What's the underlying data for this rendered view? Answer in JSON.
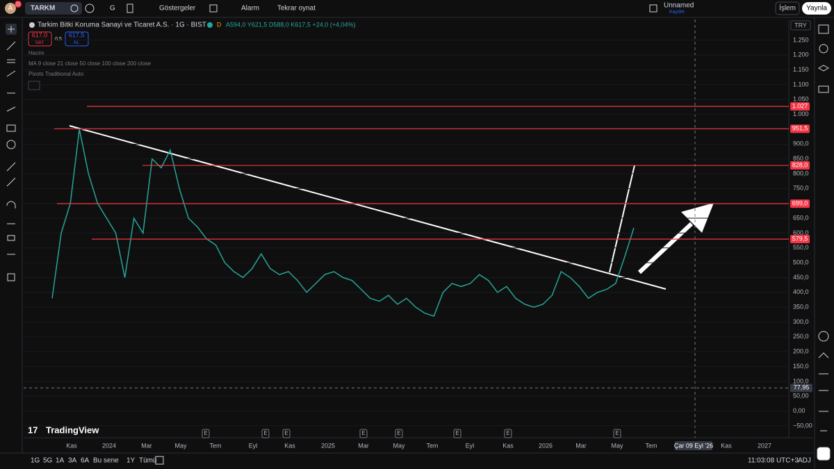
{
  "header": {
    "avatar": "A",
    "badge": "11",
    "symbol": "TARKM",
    "interval": "G",
    "indicators": "Göstergeler",
    "alarm": "Alarm",
    "replay": "Tekrar oynat",
    "layout_name": "Unnamed",
    "save": "Kaydet",
    "trade": "İşlem",
    "publish": "Yaynla"
  },
  "legend": {
    "sell_price": "617,0",
    "sell": "SAT",
    "spread": "0,5",
    "buy_price": "617,5",
    "buy": "AL",
    "exchange_flag": "D",
    "ohlc": "A594,0 Y621,5 D588,0 K617,5 +24,0 (+4,04%)",
    "volume": "Hacim",
    "ma": "MA 9 close 21 close 50 close 100 close 200 close",
    "pivots": "Pivots Traditional Auto"
  },
  "chart_data": {
    "type": "line",
    "currency": "TRY",
    "series": [
      {
        "name": "Tarkim Bitki Koruma Sanayi ve Ticaret A.S. · 1G · BIST",
        "color": "#26a69a",
        "values": [
          380,
          600,
          700,
          950,
          800,
          700,
          650,
          600,
          450,
          650,
          600,
          850,
          820,
          880,
          750,
          650,
          620,
          580,
          560,
          500,
          470,
          450,
          480,
          530,
          480,
          460,
          470,
          440,
          400,
          430,
          460,
          470,
          450,
          440,
          410,
          380,
          370,
          390,
          360,
          380,
          350,
          330,
          320,
          400,
          430,
          420,
          430,
          460,
          440,
          400,
          420,
          380,
          360,
          350,
          360,
          390,
          470,
          450,
          420,
          380,
          400,
          410,
          430,
          520,
          617.5
        ]
      }
    ],
    "ylim": [
      -90,
      1320
    ],
    "yticks": [
      {
        "value": 1250,
        "label": "1.250"
      },
      {
        "value": 1200,
        "label": "1.200"
      },
      {
        "value": 1150,
        "label": "1.150"
      },
      {
        "value": 1100,
        "label": "1.100"
      },
      {
        "value": 1050,
        "label": "1.050"
      },
      {
        "value": 1000,
        "label": "1.000"
      },
      {
        "value": 950,
        "label": "950,0"
      },
      {
        "value": 900,
        "label": "900,0"
      },
      {
        "value": 850,
        "label": "850,0"
      },
      {
        "value": 800,
        "label": "800,0"
      },
      {
        "value": 750,
        "label": "750,0"
      },
      {
        "value": 700,
        "label": "700,0"
      },
      {
        "value": 650,
        "label": "650,0"
      },
      {
        "value": 600,
        "label": "600,0"
      },
      {
        "value": 550,
        "label": "550,0"
      },
      {
        "value": 500,
        "label": "500,0"
      },
      {
        "value": 450,
        "label": "450,0"
      },
      {
        "value": 400,
        "label": "400,0"
      },
      {
        "value": 350,
        "label": "350,0"
      },
      {
        "value": 300,
        "label": "300,0"
      },
      {
        "value": 250,
        "label": "250,0"
      },
      {
        "value": 200,
        "label": "200,0"
      },
      {
        "value": 150,
        "label": "150,0"
      },
      {
        "value": 100,
        "label": "100,0"
      },
      {
        "value": 50,
        "label": "50,00"
      },
      {
        "value": 0,
        "label": "0,00"
      },
      {
        "value": -50,
        "label": "−50,00"
      }
    ],
    "levels": [
      {
        "value": 1027,
        "label": "1.027"
      },
      {
        "value": 951.5,
        "label": "951,5"
      },
      {
        "value": 828,
        "label": "828,0"
      },
      {
        "value": 699,
        "label": "699,0"
      },
      {
        "value": 579.5,
        "label": "579,5"
      }
    ],
    "crosshair": {
      "value": 77.95,
      "label": "77,95"
    },
    "x_labels": [
      "Kas",
      "2024",
      "Mar",
      "May",
      "Tem",
      "Eyl",
      "Kas",
      "2025",
      "Mar",
      "May",
      "Tem",
      "Eyl",
      "Kas",
      "2026",
      "Mar",
      "May",
      "Tem",
      "Çar 09 Eyl '26",
      "Kas",
      "2027"
    ],
    "events": [
      "E",
      "E",
      "E",
      "E",
      "E",
      "E",
      "E",
      "E"
    ]
  },
  "logo": "TradingView",
  "bottom_bar": {
    "ranges": [
      "1G",
      "5G",
      "1A",
      "3A",
      "6A",
      "Bu sene",
      "1Y",
      "Tümü"
    ],
    "clock": "11:03:08 UTC+3",
    "adj": "ADJ"
  }
}
